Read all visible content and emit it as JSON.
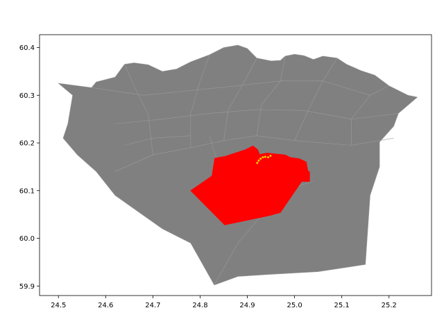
{
  "map": {
    "colors": {
      "region_fill": "#808080",
      "region_edge": "#9a9a9a",
      "highlight_fill": "#ff0000",
      "points": "#ffd700",
      "axes": "#000000",
      "background": "#ffffff"
    },
    "highlighted_region": "red filled district",
    "x_axis": {
      "min": 24.46,
      "max": 25.29,
      "ticks": [
        24.5,
        24.6,
        24.7,
        24.8,
        24.9,
        25.0,
        25.1,
        25.2
      ],
      "tick_labels": [
        "24.5",
        "24.6",
        "24.7",
        "24.8",
        "24.9",
        "25.0",
        "25.1",
        "25.2"
      ]
    },
    "y_axis": {
      "min": 59.88,
      "max": 60.427,
      "ticks": [
        59.9,
        60.0,
        60.1,
        60.2,
        60.3,
        60.4
      ],
      "tick_labels": [
        "59.9",
        "60.0",
        "60.1",
        "60.2",
        "60.3",
        "60.4"
      ]
    },
    "points": [
      [
        24.921,
        60.158
      ],
      [
        24.924,
        60.163
      ],
      [
        24.928,
        60.167
      ],
      [
        24.933,
        60.17
      ],
      [
        24.938,
        60.171
      ],
      [
        24.944,
        60.17
      ],
      [
        24.949,
        60.173
      ]
    ],
    "regions": {
      "outer_boundary": [
        [
          24.5,
          60.325
        ],
        [
          24.57,
          60.316
        ],
        [
          24.58,
          60.328
        ],
        [
          24.62,
          60.338
        ],
        [
          24.64,
          60.365
        ],
        [
          24.66,
          60.368
        ],
        [
          24.69,
          60.364
        ],
        [
          24.72,
          60.35
        ],
        [
          24.75,
          60.355
        ],
        [
          24.78,
          60.37
        ],
        [
          24.82,
          60.385
        ],
        [
          24.85,
          60.4
        ],
        [
          24.88,
          60.405
        ],
        [
          24.9,
          60.398
        ],
        [
          24.92,
          60.378
        ],
        [
          24.95,
          60.372
        ],
        [
          24.97,
          60.373
        ],
        [
          24.98,
          60.382
        ],
        [
          25.0,
          60.386
        ],
        [
          25.02,
          60.383
        ],
        [
          25.04,
          60.375
        ],
        [
          25.06,
          60.382
        ],
        [
          25.09,
          60.378
        ],
        [
          25.11,
          60.365
        ],
        [
          25.14,
          60.352
        ],
        [
          25.17,
          60.342
        ],
        [
          25.2,
          60.32
        ],
        [
          25.24,
          60.3
        ],
        [
          25.26,
          60.296
        ],
        [
          25.22,
          60.262
        ],
        [
          25.21,
          60.235
        ],
        [
          25.18,
          60.202
        ],
        [
          25.18,
          60.15
        ],
        [
          25.16,
          60.09
        ],
        [
          25.15,
          59.945
        ],
        [
          25.05,
          59.93
        ],
        [
          24.94,
          59.924
        ],
        [
          24.88,
          59.92
        ],
        [
          24.83,
          59.902
        ],
        [
          24.78,
          59.99
        ],
        [
          24.72,
          60.02
        ],
        [
          24.67,
          60.055
        ],
        [
          24.62,
          60.09
        ],
        [
          24.58,
          60.14
        ],
        [
          24.54,
          60.175
        ],
        [
          24.51,
          60.21
        ],
        [
          24.52,
          60.24
        ],
        [
          24.53,
          60.3
        ]
      ],
      "district_lines": [
        [
          [
            24.62,
            60.14
          ],
          [
            24.7,
            60.175
          ],
          [
            24.78,
            60.19
          ],
          [
            24.85,
            60.205
          ],
          [
            24.92,
            60.215
          ],
          [
            25.0,
            60.205
          ],
          [
            25.12,
            60.195
          ],
          [
            25.21,
            60.21
          ]
        ],
        [
          [
            24.7,
            60.175
          ],
          [
            24.69,
            60.26
          ],
          [
            24.66,
            60.32
          ],
          [
            24.64,
            60.365
          ]
        ],
        [
          [
            24.78,
            60.19
          ],
          [
            24.78,
            60.26
          ],
          [
            24.8,
            60.33
          ],
          [
            24.82,
            60.385
          ]
        ],
        [
          [
            24.85,
            60.205
          ],
          [
            24.86,
            60.27
          ],
          [
            24.9,
            60.34
          ],
          [
            24.92,
            60.378
          ]
        ],
        [
          [
            24.92,
            60.215
          ],
          [
            24.93,
            60.28
          ],
          [
            24.97,
            60.33
          ],
          [
            24.98,
            60.382
          ]
        ],
        [
          [
            25.0,
            60.205
          ],
          [
            25.03,
            60.27
          ],
          [
            25.06,
            60.33
          ],
          [
            25.09,
            60.378
          ]
        ],
        [
          [
            25.12,
            60.195
          ],
          [
            25.12,
            60.25
          ],
          [
            25.16,
            60.3
          ],
          [
            25.2,
            60.32
          ]
        ],
        [
          [
            24.62,
            60.24
          ],
          [
            24.72,
            60.25
          ],
          [
            24.82,
            60.262
          ],
          [
            24.92,
            60.27
          ],
          [
            25.02,
            60.268
          ],
          [
            25.12,
            60.25
          ],
          [
            25.22,
            60.262
          ]
        ],
        [
          [
            24.57,
            60.316
          ],
          [
            24.68,
            60.3
          ],
          [
            24.78,
            60.31
          ],
          [
            24.88,
            60.32
          ],
          [
            24.97,
            60.33
          ],
          [
            25.06,
            60.33
          ],
          [
            25.16,
            60.3
          ]
        ],
        [
          [
            24.84,
            60.15
          ],
          [
            24.82,
            60.215
          ]
        ],
        [
          [
            24.64,
            60.195
          ],
          [
            24.7,
            60.21
          ],
          [
            24.78,
            60.215
          ]
        ],
        [
          [
            24.83,
            59.902
          ],
          [
            24.88,
            59.99
          ],
          [
            24.94,
            60.06
          ],
          [
            24.98,
            60.1
          ],
          [
            25.04,
            60.12
          ]
        ]
      ],
      "highlighted_polygon": [
        [
          24.78,
          60.1
        ],
        [
          24.825,
          60.131
        ],
        [
          24.831,
          60.168
        ],
        [
          24.853,
          60.172
        ],
        [
          24.896,
          60.186
        ],
        [
          24.912,
          60.194
        ],
        [
          24.922,
          60.186
        ],
        [
          24.926,
          60.176
        ],
        [
          24.942,
          60.179
        ],
        [
          24.98,
          60.175
        ],
        [
          24.99,
          60.17
        ],
        [
          25.01,
          60.167
        ],
        [
          25.025,
          60.16
        ],
        [
          25.028,
          60.142
        ],
        [
          25.032,
          60.139
        ],
        [
          25.032,
          60.119
        ],
        [
          25.015,
          60.119
        ],
        [
          24.97,
          60.054
        ],
        [
          24.949,
          60.048
        ],
        [
          24.852,
          60.028
        ]
      ]
    }
  }
}
